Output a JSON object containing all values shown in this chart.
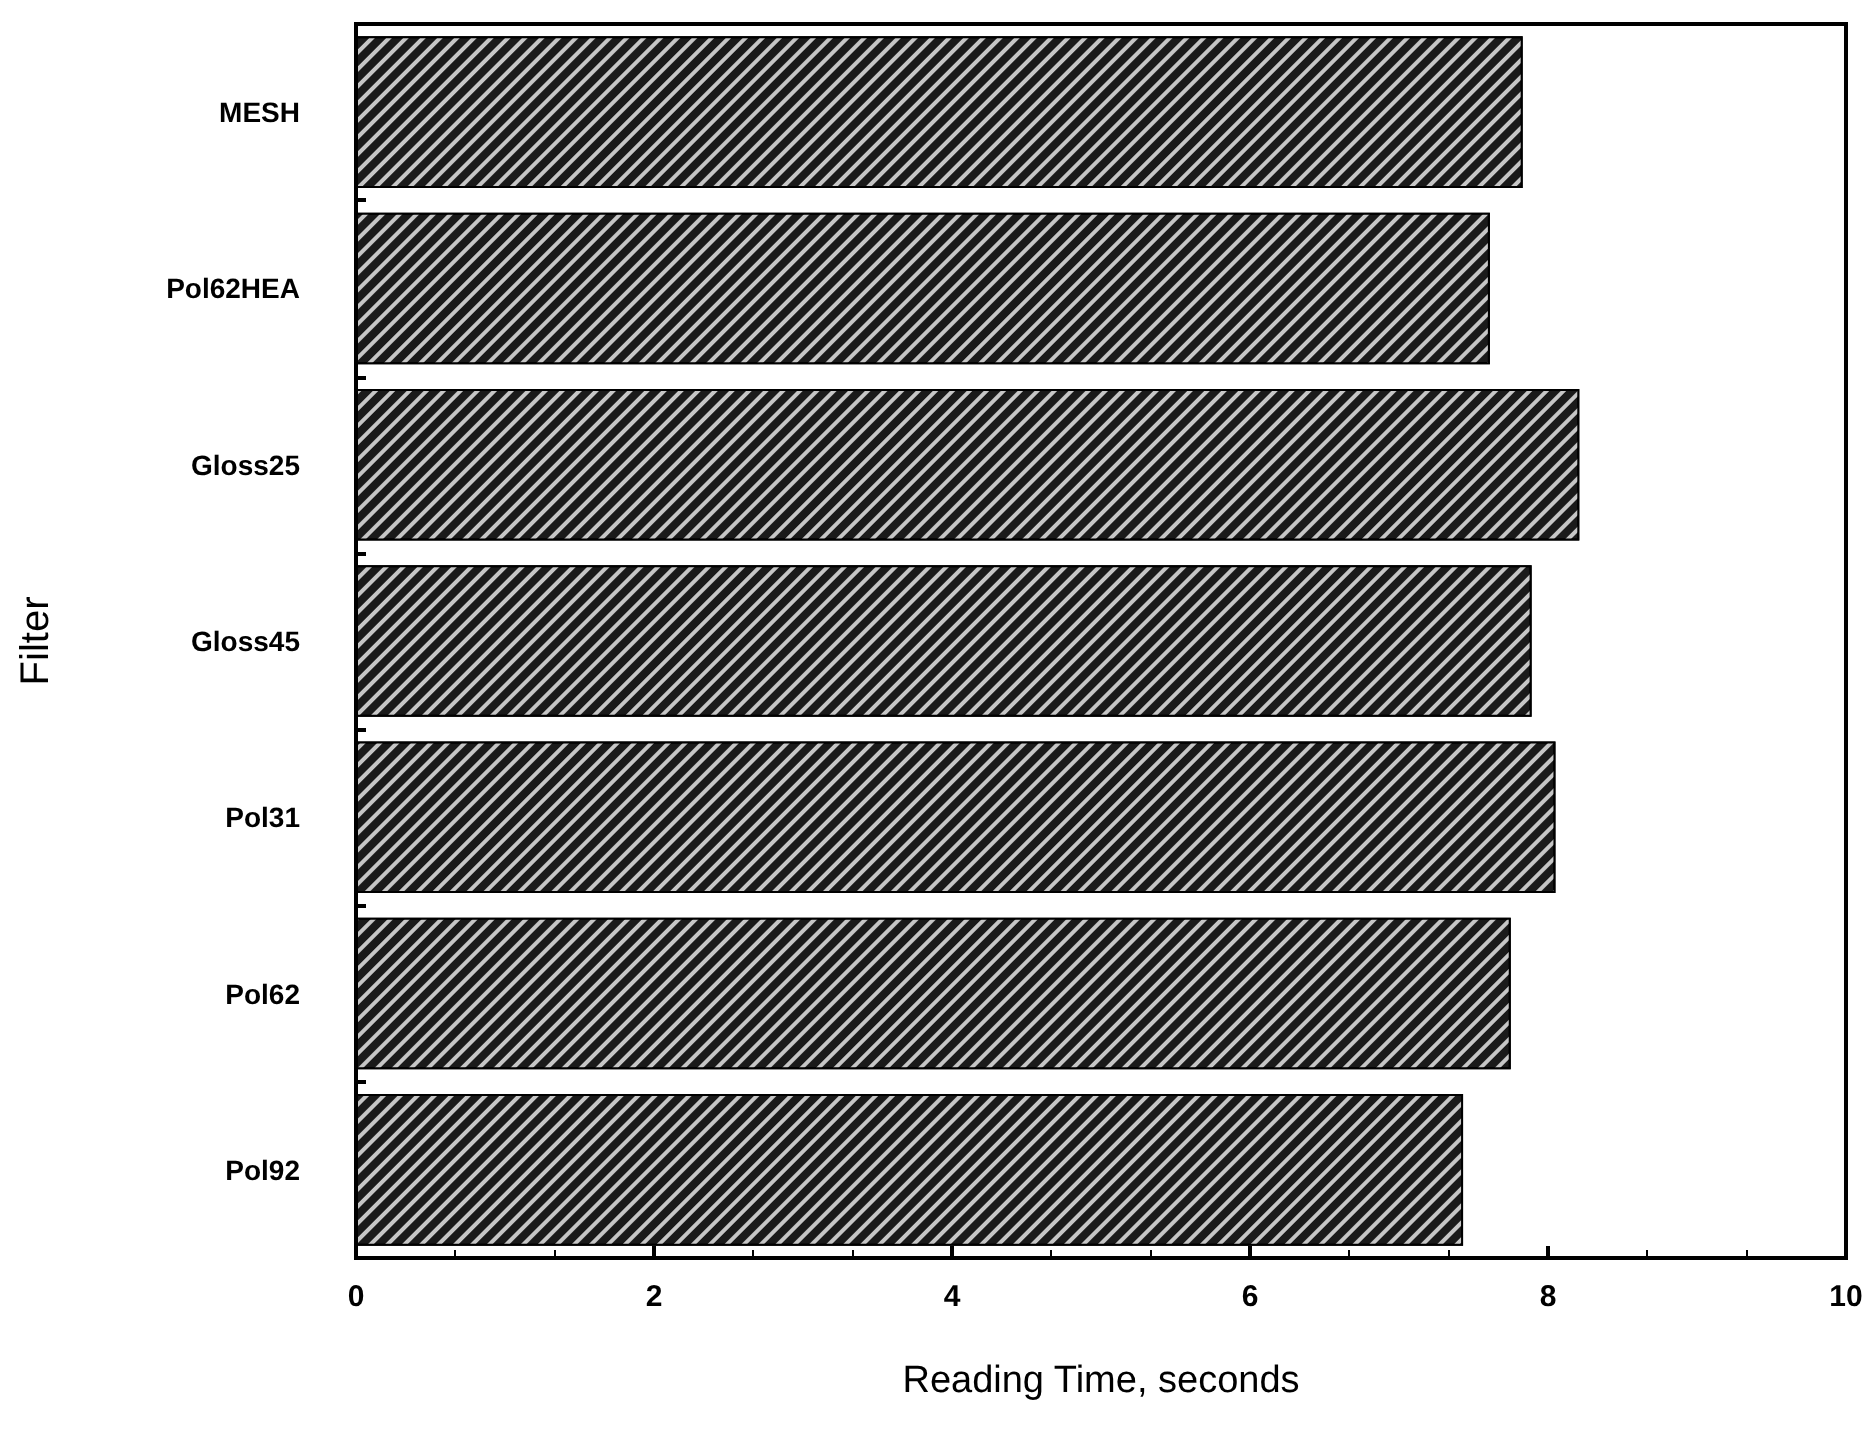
{
  "chart_data": {
    "type": "bar",
    "orientation": "horizontal",
    "xlabel": "Reading Time, seconds",
    "ylabel": "Filter",
    "categories": [
      "MESH",
      "Pol62HEA",
      "Gloss25",
      "Gloss45",
      "Pol31",
      "Pol62",
      "Pol92"
    ],
    "values": [
      7.83,
      7.61,
      8.21,
      7.89,
      8.05,
      7.75,
      7.43
    ],
    "color": "#1a1a1a",
    "xlim": [
      0,
      10
    ],
    "xticks": [
      0,
      2,
      4,
      6,
      8,
      10
    ]
  }
}
